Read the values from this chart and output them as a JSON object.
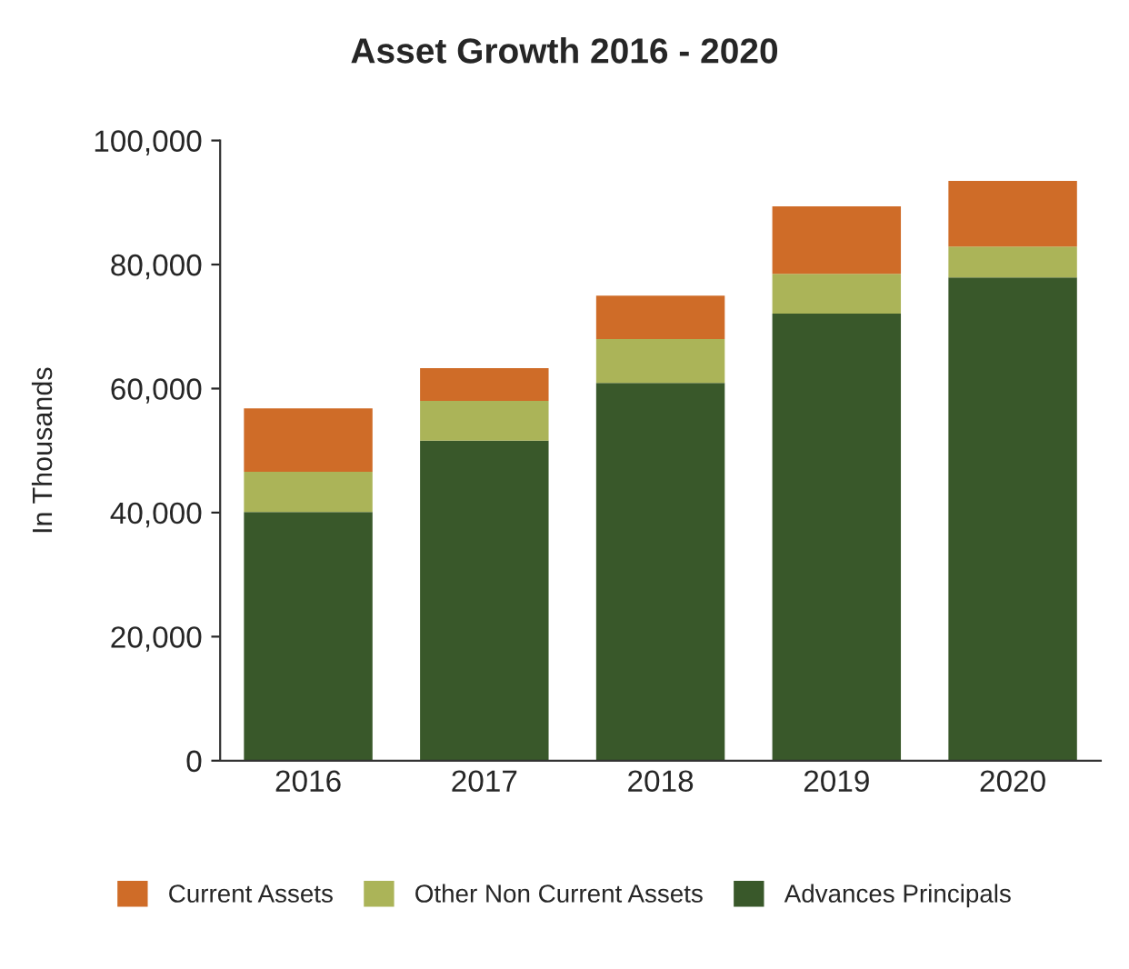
{
  "chart_data": {
    "type": "bar",
    "title": "Asset Growth 2016 - 2020",
    "ylabel": "In Thousands",
    "categories": [
      "2016",
      "2017",
      "2018",
      "2019",
      "2020"
    ],
    "stacked": true,
    "series": [
      {
        "name": "Advances Principals",
        "color": "#39582a",
        "values": [
          40100,
          51600,
          60900,
          72100,
          77900
        ]
      },
      {
        "name": "Other Non Current Assets",
        "color": "#abb458",
        "values": [
          6500,
          6400,
          7100,
          6400,
          5000
        ]
      },
      {
        "name": "Current Assets",
        "color": "#cf6c28",
        "values": [
          10200,
          5300,
          7000,
          10900,
          10600
        ]
      }
    ],
    "ylim": [
      0,
      100000
    ],
    "yticks": [
      {
        "value": 0,
        "label": "0"
      },
      {
        "value": 20000,
        "label": "20,000"
      },
      {
        "value": 40000,
        "label": "40,000"
      },
      {
        "value": 60000,
        "label": "60,000"
      },
      {
        "value": 80000,
        "label": "80,000"
      },
      {
        "value": 100000,
        "label": "100,000"
      }
    ],
    "grid": false,
    "legend": "bottom"
  }
}
